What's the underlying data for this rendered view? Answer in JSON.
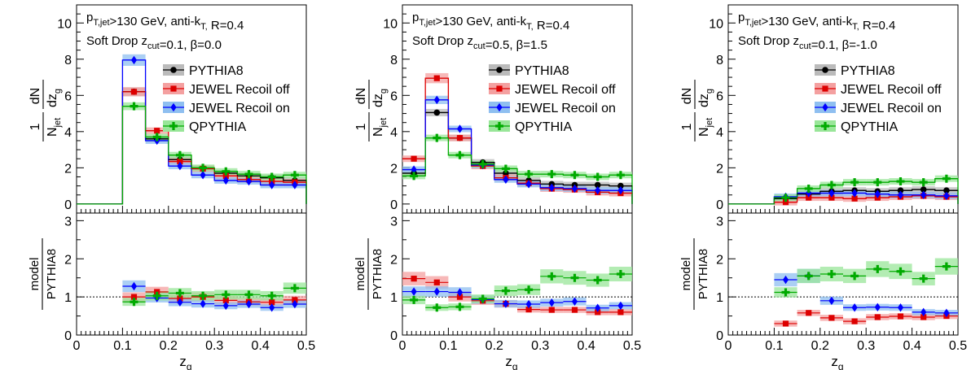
{
  "chart_data": [
    {
      "type": "histogram",
      "annotation_line1": "p_T,jet>130 GeV, anti-k_T, R=0.4",
      "annotation_line2": "Soft Drop z_cut=0.1, β=0.0",
      "xlabel": "z_g",
      "ylabel": "1/N_jet dN/dz_g",
      "ratio_ylabel": "model/PYTHIA8",
      "xlim": [
        0,
        0.5
      ],
      "ylim": [
        -0.5,
        11
      ],
      "ratio_ylim": [
        0,
        3.2
      ],
      "bin_edges": [
        0,
        0.05,
        0.1,
        0.15,
        0.2,
        0.25,
        0.3,
        0.35,
        0.4,
        0.45,
        0.5
      ],
      "series": [
        {
          "name": "PYTHIA8",
          "color": "#000000",
          "marker": "circle",
          "values": [
            0,
            0,
            6.2,
            3.6,
            2.45,
            1.95,
            1.7,
            1.55,
            1.45,
            1.3
          ],
          "ratio": [
            null,
            null,
            null,
            null,
            null,
            null,
            null,
            null,
            null,
            null
          ]
        },
        {
          "name": "JEWEL Recoil off",
          "color": "#dd0000",
          "marker": "square",
          "values": [
            0,
            0,
            6.2,
            4.05,
            2.35,
            1.95,
            1.55,
            1.35,
            1.25,
            1.2
          ],
          "ratio": [
            null,
            null,
            1.0,
            1.13,
            0.96,
            1.0,
            0.91,
            0.87,
            0.86,
            0.92
          ]
        },
        {
          "name": "JEWEL Recoil on",
          "color": "#0000ff",
          "marker": "diamond",
          "values": [
            0,
            0,
            7.95,
            3.5,
            2.1,
            1.6,
            1.3,
            1.25,
            1.05,
            1.05
          ],
          "ratio": [
            null,
            null,
            1.28,
            0.97,
            0.86,
            0.82,
            0.77,
            0.81,
            0.72,
            0.81
          ]
        },
        {
          "name": "QPYTHIA",
          "color": "#00aa00",
          "marker": "cross",
          "values": [
            0,
            0,
            5.4,
            3.7,
            2.7,
            2.0,
            1.8,
            1.65,
            1.5,
            1.6
          ],
          "ratio": [
            null,
            null,
            0.87,
            1.03,
            1.1,
            1.03,
            1.06,
            1.06,
            1.03,
            1.23
          ]
        }
      ]
    },
    {
      "type": "histogram",
      "annotation_line1": "p_T,jet>130 GeV, anti-k_T, R=0.4",
      "annotation_line2": "Soft Drop z_cut=0.5, β=1.5",
      "xlabel": "z_g",
      "ylabel": "1/N_jet dN/dz_g",
      "ratio_ylabel": "model/PYTHIA8",
      "xlim": [
        0,
        0.5
      ],
      "ylim": [
        -0.5,
        11
      ],
      "ratio_ylim": [
        0,
        3.2
      ],
      "bin_edges": [
        0,
        0.05,
        0.1,
        0.15,
        0.2,
        0.25,
        0.3,
        0.35,
        0.4,
        0.45,
        0.5
      ],
      "series": [
        {
          "name": "PYTHIA8",
          "color": "#000000",
          "marker": "circle",
          "values": [
            1.7,
            5.05,
            3.65,
            2.3,
            1.7,
            1.3,
            1.1,
            1.05,
            1.05,
            1.0
          ],
          "ratio": [
            null,
            null,
            null,
            null,
            null,
            null,
            null,
            null,
            null,
            null
          ]
        },
        {
          "name": "JEWEL Recoil off",
          "color": "#dd0000",
          "marker": "square",
          "values": [
            2.5,
            6.95,
            3.65,
            2.1,
            1.45,
            1.15,
            0.85,
            0.8,
            0.65,
            0.6
          ],
          "ratio": [
            1.48,
            1.38,
            1.0,
            0.9,
            0.82,
            0.67,
            0.66,
            0.66,
            0.6,
            0.6
          ]
        },
        {
          "name": "JEWEL Recoil on",
          "color": "#0000ff",
          "marker": "diamond",
          "values": [
            1.9,
            5.75,
            4.15,
            2.15,
            1.35,
            1.1,
            0.9,
            0.85,
            0.75,
            0.75
          ],
          "ratio": [
            1.14,
            1.14,
            1.12,
            0.93,
            0.82,
            0.81,
            0.85,
            0.88,
            0.71,
            0.77
          ]
        },
        {
          "name": "QPYTHIA",
          "color": "#00aa00",
          "marker": "cross",
          "values": [
            1.55,
            3.65,
            2.7,
            2.2,
            1.95,
            1.65,
            1.65,
            1.6,
            1.5,
            1.6
          ],
          "ratio": [
            0.92,
            0.72,
            0.74,
            0.95,
            1.16,
            1.19,
            1.54,
            1.5,
            1.44,
            1.6
          ]
        }
      ]
    },
    {
      "type": "histogram",
      "annotation_line1": "p_T,jet>130 GeV, anti-k_T, R=0.4",
      "annotation_line2": "Soft Drop z_cut=0.1, β=-1.0",
      "xlabel": "z_g",
      "ylabel": "1/N_jet dN/dz_g",
      "ratio_ylabel": "model/PYTHIA8",
      "xlim": [
        0,
        0.5
      ],
      "ylim": [
        -0.5,
        11
      ],
      "ratio_ylim": [
        0,
        3.2
      ],
      "bin_edges": [
        0,
        0.05,
        0.1,
        0.15,
        0.2,
        0.25,
        0.3,
        0.35,
        0.4,
        0.45,
        0.5
      ],
      "series": [
        {
          "name": "PYTHIA8",
          "color": "#000000",
          "marker": "circle",
          "values": [
            0,
            0,
            0.3,
            0.55,
            0.7,
            0.75,
            0.7,
            0.75,
            0.8,
            0.75
          ],
          "ratio": [
            null,
            null,
            null,
            null,
            null,
            null,
            null,
            null,
            null,
            null
          ]
        },
        {
          "name": "JEWEL Recoil off",
          "color": "#dd0000",
          "marker": "square",
          "values": [
            0,
            0,
            0.1,
            0.35,
            0.35,
            0.3,
            0.35,
            0.4,
            0.45,
            0.4
          ],
          "ratio": [
            null,
            null,
            0.3,
            0.58,
            0.45,
            0.36,
            0.47,
            0.49,
            0.47,
            0.5
          ]
        },
        {
          "name": "JEWEL Recoil on",
          "color": "#0000ff",
          "marker": "diamond",
          "values": [
            0,
            0,
            0.4,
            0.6,
            0.6,
            0.6,
            0.55,
            0.5,
            0.5,
            0.45
          ],
          "ratio": [
            null,
            null,
            1.45,
            1.55,
            0.9,
            0.72,
            0.73,
            0.72,
            0.6,
            0.58
          ]
        },
        {
          "name": "QPYTHIA",
          "color": "#00aa00",
          "marker": "cross",
          "values": [
            0,
            0,
            0.35,
            0.85,
            1.05,
            1.2,
            1.2,
            1.25,
            1.2,
            1.4
          ],
          "ratio": [
            null,
            null,
            1.12,
            1.55,
            1.6,
            1.55,
            1.73,
            1.67,
            1.48,
            1.8
          ]
        }
      ]
    }
  ]
}
